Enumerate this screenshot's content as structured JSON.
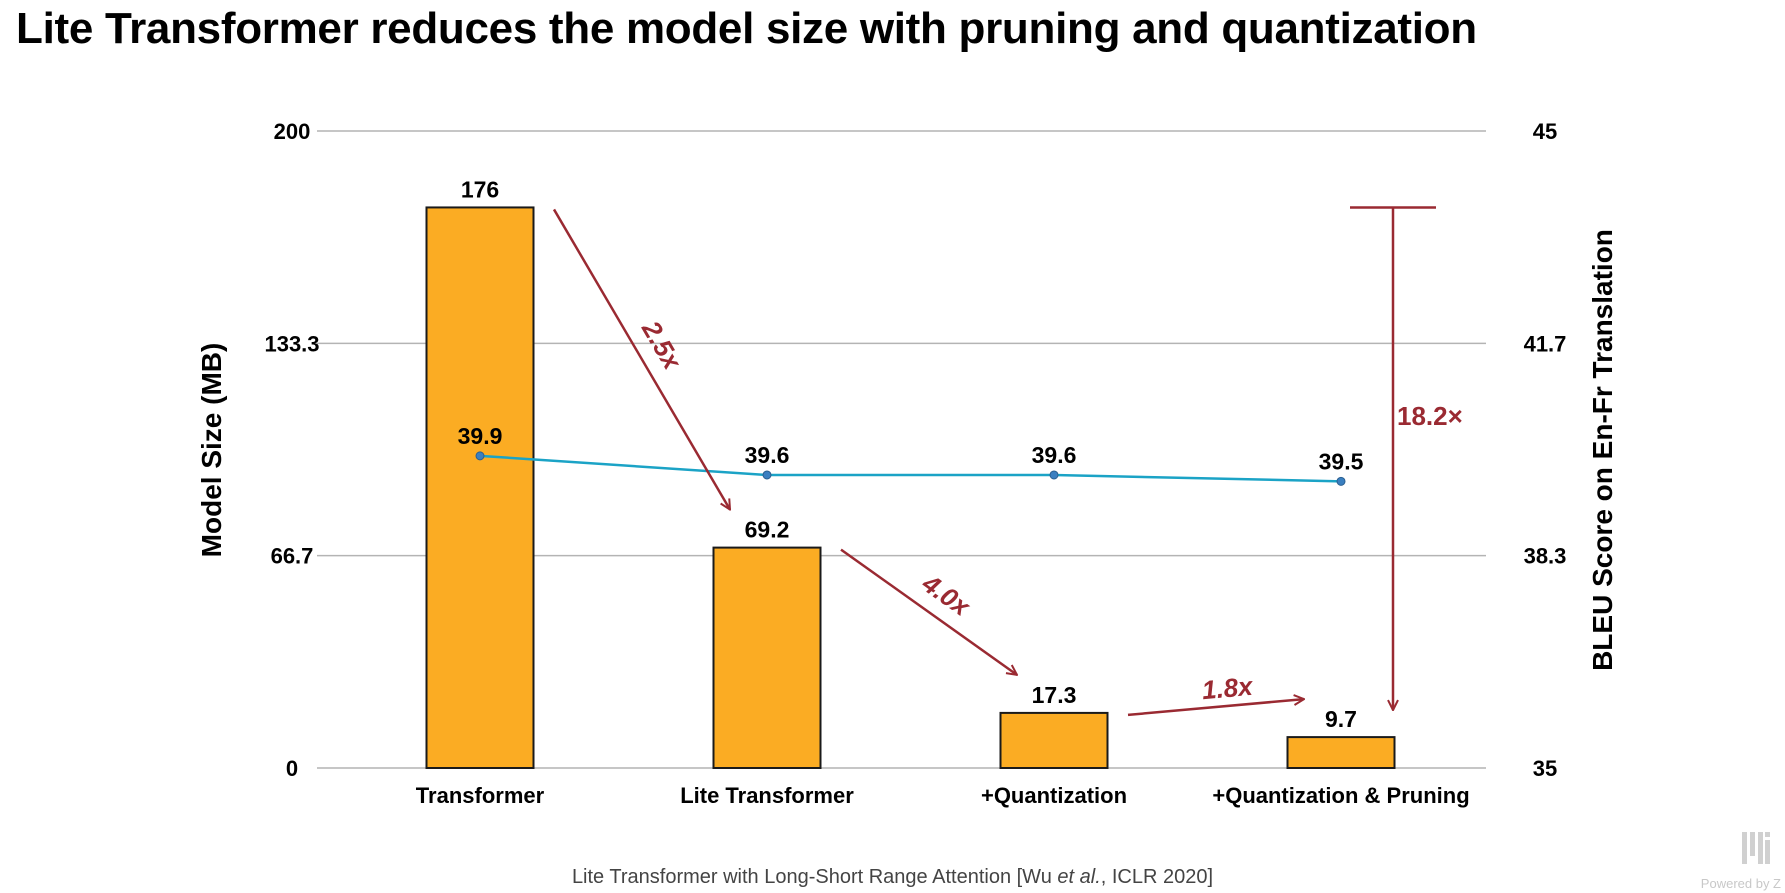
{
  "slide": {
    "title": "Lite Transformer reduces the model size with pruning and quantization",
    "citation_before": "Lite Transformer with Long-Short Range Attention [Wu ",
    "citation_italic": "et al.",
    "citation_after": ", ICLR 2020]",
    "watermark": "Powered by Z"
  },
  "chart_data": {
    "type": "bar",
    "categories": [
      "Transformer",
      "Lite Transformer",
      "+Quantization",
      "+Quantization & Pruning"
    ],
    "ylabel": "Model Size (MB)",
    "ylabel_right": "BLEU Score on En-Fr Translation",
    "ylim": [
      0,
      200
    ],
    "ylim_right": [
      35,
      45
    ],
    "yticks": [
      "200",
      "133.3",
      "66.7",
      "0"
    ],
    "yticks_right": [
      "45",
      "41.7",
      "38.3",
      "35"
    ],
    "grid": true,
    "bar_color": "#FBAC23",
    "line_color": "#1BA3C6",
    "annotation_color": "#9A2A32",
    "series": [
      {
        "axis": "left",
        "type": "bar",
        "values": [
          176,
          69.2,
          17.3,
          9.7
        ],
        "labels": [
          "176",
          "69.2",
          "17.3",
          "9.7"
        ]
      },
      {
        "axis": "right",
        "type": "line",
        "values": [
          39.9,
          39.6,
          39.6,
          39.5
        ],
        "labels": [
          "39.9",
          "39.6",
          "39.6",
          "39.5"
        ]
      }
    ],
    "annotations": [
      {
        "text": "2.5x",
        "from_category": 0,
        "to_category": 1
      },
      {
        "text": "4.0x",
        "from_category": 1,
        "to_category": 2
      },
      {
        "text": "1.8x",
        "from_category": 2,
        "to_category": 3
      },
      {
        "text": "18.2×",
        "from_category": 0,
        "to_category": 3,
        "style": "bracket"
      }
    ]
  }
}
